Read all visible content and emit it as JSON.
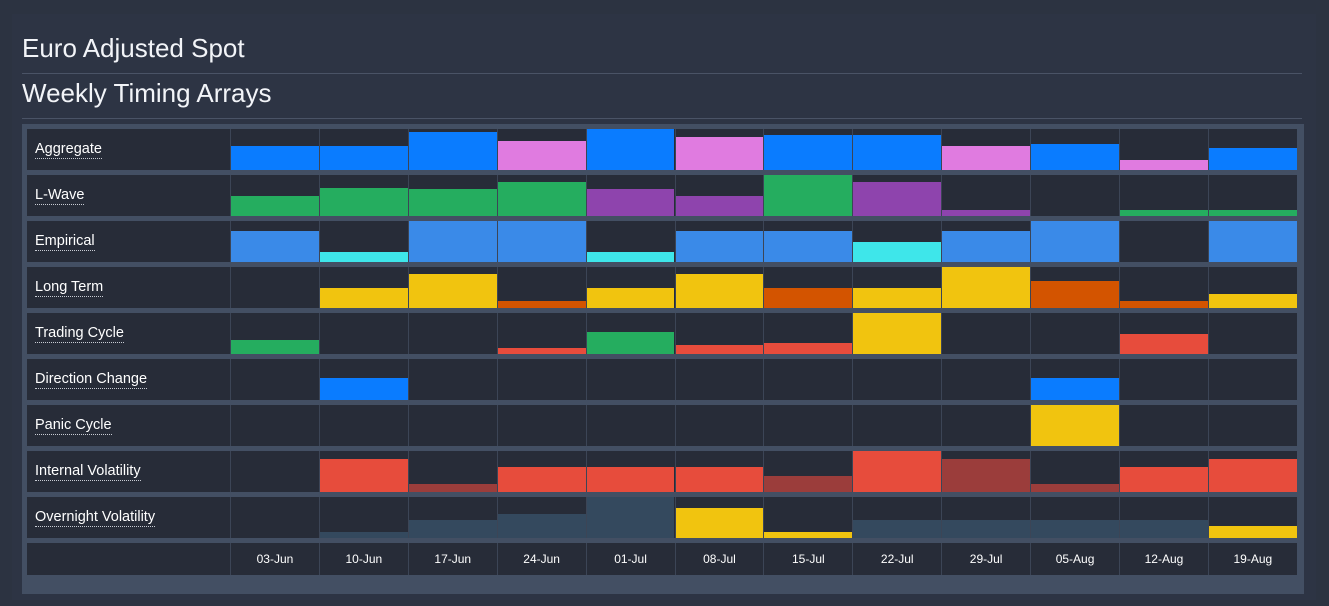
{
  "header": {
    "title": "Euro Adjusted Spot",
    "subtitle": "Weekly Timing Arrays"
  },
  "colors": {
    "blue": "#0a7cff",
    "pink": "#e07be0",
    "green": "#25ad5f",
    "purple": "#8e44ad",
    "lightblue": "#3a8ae8",
    "cyan": "#3ee6ea",
    "yellow": "#f1c40f",
    "orange": "#d35400",
    "red": "#e74c3c",
    "darkred": "#9b3d3b",
    "slate": "#34495e"
  },
  "chart_data": {
    "type": "heatmap",
    "title": "Weekly Timing Arrays",
    "categories": [
      "03-Jun",
      "10-Jun",
      "17-Jun",
      "24-Jun",
      "01-Jul",
      "08-Jul",
      "15-Jul",
      "22-Jul",
      "29-Jul",
      "05-Aug",
      "12-Aug",
      "19-Aug"
    ],
    "rows": [
      {
        "name": "Aggregate",
        "values": [
          0.58,
          0.58,
          0.92,
          0.7,
          1.0,
          0.8,
          0.85,
          0.85,
          0.58,
          0.63,
          0.25,
          0.53
        ],
        "colors": [
          "blue",
          "blue",
          "blue",
          "pink",
          "blue",
          "pink",
          "blue",
          "blue",
          "pink",
          "blue",
          "pink",
          "blue"
        ]
      },
      {
        "name": "L-Wave",
        "values": [
          0.48,
          0.68,
          0.65,
          0.83,
          0.65,
          0.48,
          1.0,
          0.83,
          0.15,
          0.0,
          0.15,
          0.15
        ],
        "colors": [
          "green",
          "green",
          "green",
          "green",
          "purple",
          "purple",
          "green",
          "purple",
          "purple",
          "green",
          "green",
          "green"
        ]
      },
      {
        "name": "Empirical",
        "values": [
          0.75,
          0.25,
          1.0,
          1.0,
          0.25,
          0.75,
          0.75,
          0.5,
          0.75,
          1.0,
          0.0,
          1.0
        ],
        "colors": [
          "lightblue",
          "cyan",
          "lightblue",
          "lightblue",
          "cyan",
          "lightblue",
          "lightblue",
          "cyan",
          "lightblue",
          "lightblue",
          "lightblue",
          "lightblue"
        ]
      },
      {
        "name": "Long Term",
        "values": [
          0.0,
          0.5,
          0.83,
          0.17,
          0.5,
          0.83,
          0.5,
          0.5,
          1.0,
          0.67,
          0.17,
          0.35
        ],
        "colors": [
          "yellow",
          "yellow",
          "yellow",
          "orange",
          "yellow",
          "yellow",
          "orange",
          "yellow",
          "yellow",
          "orange",
          "orange",
          "yellow"
        ]
      },
      {
        "name": "Trading Cycle",
        "values": [
          0.33,
          0.0,
          0.0,
          0.15,
          0.53,
          0.23,
          0.28,
          1.0,
          0.0,
          0.0,
          0.5,
          0.0
        ],
        "colors": [
          "green",
          "green",
          "green",
          "red",
          "green",
          "red",
          "red",
          "yellow",
          "red",
          "red",
          "red",
          "red"
        ]
      },
      {
        "name": "Direction Change",
        "values": [
          0.0,
          0.53,
          0.0,
          0.0,
          0.0,
          0.0,
          0.0,
          0.0,
          0.0,
          0.53,
          0.0,
          0.0
        ],
        "colors": [
          "blue",
          "blue",
          "blue",
          "blue",
          "blue",
          "blue",
          "blue",
          "blue",
          "blue",
          "blue",
          "blue",
          "blue"
        ]
      },
      {
        "name": "Panic Cycle",
        "values": [
          0.0,
          0.0,
          0.0,
          0.0,
          0.0,
          0.0,
          0.0,
          0.0,
          0.0,
          1.0,
          0.0,
          0.0
        ],
        "colors": [
          "yellow",
          "yellow",
          "yellow",
          "yellow",
          "yellow",
          "yellow",
          "yellow",
          "yellow",
          "yellow",
          "yellow",
          "yellow",
          "yellow"
        ]
      },
      {
        "name": "Internal Volatility",
        "values": [
          0.0,
          0.8,
          0.2,
          0.6,
          0.6,
          0.6,
          0.4,
          1.0,
          0.8,
          0.2,
          0.6,
          0.8
        ],
        "colors": [
          "red",
          "red",
          "darkred",
          "red",
          "red",
          "red",
          "darkred",
          "red",
          "darkred",
          "darkred",
          "red",
          "red"
        ]
      },
      {
        "name": "Overnight Volatility",
        "values": [
          0.0,
          0.15,
          0.45,
          0.58,
          1.0,
          0.73,
          0.15,
          0.45,
          0.45,
          0.45,
          0.45,
          0.3
        ],
        "colors": [
          "slate",
          "slate",
          "slate",
          "slate",
          "slate",
          "yellow",
          "yellow",
          "slate",
          "slate",
          "slate",
          "slate",
          "yellow"
        ]
      }
    ],
    "value_scale": [
      0,
      1
    ],
    "grid": true,
    "legend": "none"
  }
}
